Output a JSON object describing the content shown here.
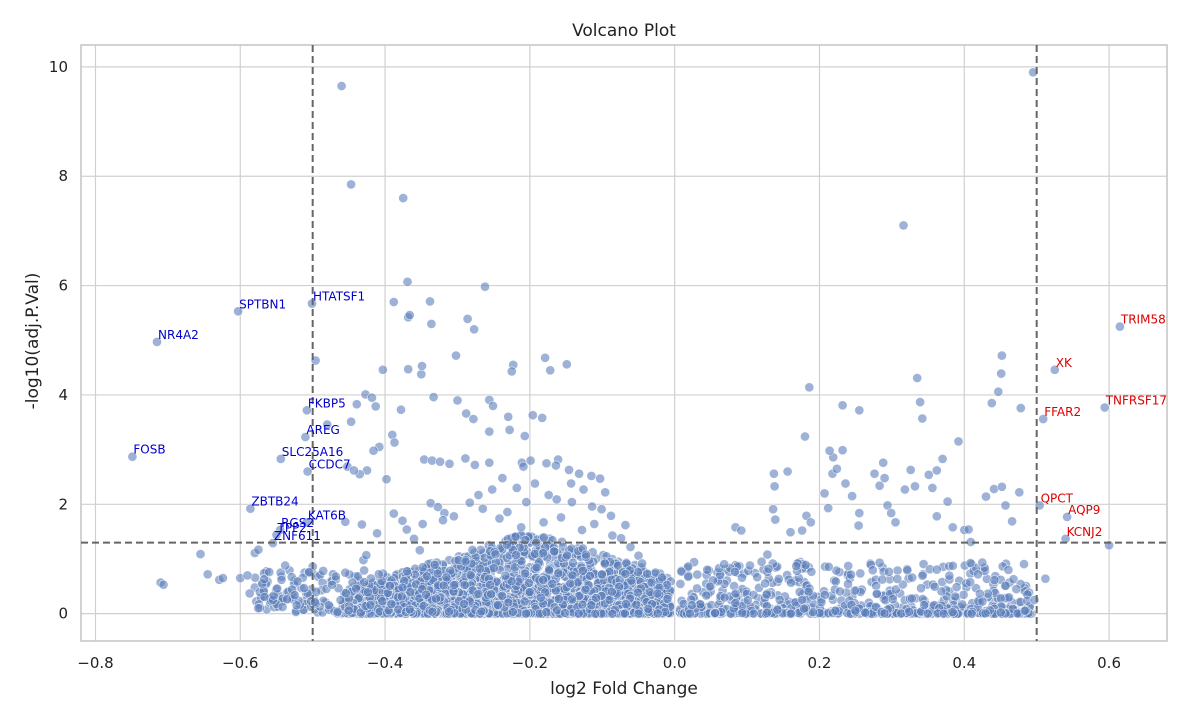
{
  "chart_data": {
    "type": "scatter",
    "title": "Volcano Plot",
    "xlabel": "log2 Fold Change",
    "ylabel": "-log10(adj.P.Val)",
    "xlim": [
      -0.82,
      0.68
    ],
    "ylim": [
      -0.5,
      10.4
    ],
    "xticks": [
      -0.8,
      -0.6,
      -0.4,
      -0.2,
      0.0,
      0.2,
      0.4,
      0.6
    ],
    "xtick_labels": [
      "−0.8",
      "−0.6",
      "−0.4",
      "−0.2",
      "0.0",
      "0.2",
      "0.4",
      "0.6"
    ],
    "yticks": [
      0,
      2,
      4,
      6,
      8,
      10
    ],
    "ytick_labels": [
      "0",
      "2",
      "4",
      "6",
      "8",
      "10"
    ],
    "grid": true,
    "threshold_lines": {
      "log2fc": [
        -0.5,
        0.5
      ],
      "neg_log10_p": 1.3
    },
    "colors": {
      "points": "#5b7fba",
      "down_labels": "#0000cc",
      "up_labels": "#dd0000",
      "threshold": "#666666",
      "grid": "#d0d0d0",
      "frame": "#c4c4c4"
    },
    "labeled_genes": [
      {
        "gene": "NR4A2",
        "x": -0.715,
        "y": 4.97,
        "direction": "down"
      },
      {
        "gene": "SPTBN1",
        "x": -0.603,
        "y": 5.53,
        "direction": "down"
      },
      {
        "gene": "HTATSF1",
        "x": -0.501,
        "y": 5.67,
        "direction": "down"
      },
      {
        "gene": "FOSB",
        "x": -0.749,
        "y": 2.87,
        "direction": "down"
      },
      {
        "gene": "FKBP5",
        "x": -0.508,
        "y": 3.72,
        "direction": "down"
      },
      {
        "gene": "AREG",
        "x": -0.51,
        "y": 3.23,
        "direction": "down"
      },
      {
        "gene": "SLC25A16",
        "x": -0.544,
        "y": 2.83,
        "direction": "down"
      },
      {
        "gene": "CCDC7",
        "x": -0.507,
        "y": 2.6,
        "direction": "down"
      },
      {
        "gene": "ZBTB24",
        "x": -0.586,
        "y": 1.92,
        "direction": "down"
      },
      {
        "gene": "KAT6B",
        "x": -0.508,
        "y": 1.67,
        "direction": "down"
      },
      {
        "gene": "RGS2",
        "x": -0.545,
        "y": 1.53,
        "direction": "down"
      },
      {
        "gene": "TPP2",
        "x": -0.55,
        "y": 1.44,
        "direction": "down"
      },
      {
        "gene": "ZNF611",
        "x": -0.555,
        "y": 1.29,
        "direction": "down"
      },
      {
        "gene": "TRIM58",
        "x": 0.615,
        "y": 5.25,
        "direction": "up"
      },
      {
        "gene": "XK",
        "x": 0.525,
        "y": 4.46,
        "direction": "up"
      },
      {
        "gene": "TNFRSF17",
        "x": 0.594,
        "y": 3.77,
        "direction": "up"
      },
      {
        "gene": "FFAR2",
        "x": 0.509,
        "y": 3.56,
        "direction": "up"
      },
      {
        "gene": "QPCT",
        "x": 0.504,
        "y": 1.98,
        "direction": "up"
      },
      {
        "gene": "AQP9",
        "x": 0.542,
        "y": 1.77,
        "direction": "up"
      },
      {
        "gene": "KCNJ2",
        "x": 0.54,
        "y": 1.37,
        "direction": "up"
      }
    ],
    "points": [
      [
        -0.46,
        9.65
      ],
      [
        0.495,
        9.9
      ],
      [
        -0.447,
        7.85
      ],
      [
        -0.375,
        7.6
      ],
      [
        0.316,
        7.1
      ],
      [
        -0.369,
        6.07
      ],
      [
        -0.262,
        5.98
      ],
      [
        -0.388,
        5.7
      ],
      [
        -0.338,
        5.71
      ],
      [
        -0.368,
        5.42
      ],
      [
        -0.366,
        5.46
      ],
      [
        -0.286,
        5.39
      ],
      [
        -0.336,
        5.3
      ],
      [
        -0.277,
        5.2
      ],
      [
        -0.496,
        4.63
      ],
      [
        -0.302,
        4.72
      ],
      [
        -0.179,
        4.68
      ],
      [
        -0.223,
        4.55
      ],
      [
        -0.149,
        4.56
      ],
      [
        -0.368,
        4.47
      ],
      [
        -0.403,
        4.46
      ],
      [
        -0.172,
        4.45
      ],
      [
        -0.225,
        4.43
      ],
      [
        -0.35,
        4.38
      ],
      [
        -0.349,
        4.53
      ],
      [
        -0.427,
        4.01
      ],
      [
        -0.418,
        3.95
      ],
      [
        -0.439,
        3.83
      ],
      [
        -0.413,
        3.79
      ],
      [
        -0.378,
        3.73
      ],
      [
        -0.333,
        3.96
      ],
      [
        -0.3,
        3.9
      ],
      [
        -0.256,
        3.91
      ],
      [
        -0.251,
        3.8
      ],
      [
        -0.288,
        3.66
      ],
      [
        -0.278,
        3.56
      ],
      [
        -0.23,
        3.6
      ],
      [
        -0.196,
        3.63
      ],
      [
        -0.183,
        3.58
      ],
      [
        -0.447,
        3.51
      ],
      [
        -0.48,
        3.46
      ],
      [
        -0.256,
        3.33
      ],
      [
        -0.228,
        3.36
      ],
      [
        -0.207,
        3.25
      ],
      [
        -0.408,
        3.05
      ],
      [
        -0.416,
        2.98
      ],
      [
        -0.39,
        3.27
      ],
      [
        -0.387,
        3.13
      ],
      [
        -0.346,
        2.82
      ],
      [
        -0.335,
        2.8
      ],
      [
        -0.324,
        2.78
      ],
      [
        -0.311,
        2.74
      ],
      [
        -0.289,
        2.84
      ],
      [
        -0.276,
        2.72
      ],
      [
        -0.256,
        2.76
      ],
      [
        -0.211,
        2.76
      ],
      [
        -0.209,
        2.69
      ],
      [
        -0.199,
        2.8
      ],
      [
        -0.177,
        2.75
      ],
      [
        -0.161,
        2.82
      ],
      [
        -0.164,
        2.71
      ],
      [
        -0.146,
        2.63
      ],
      [
        -0.132,
        2.56
      ],
      [
        -0.115,
        2.52
      ],
      [
        -0.103,
        2.47
      ],
      [
        -0.425,
        2.62
      ],
      [
        -0.452,
        2.69
      ],
      [
        -0.435,
        2.55
      ],
      [
        -0.398,
        2.46
      ],
      [
        -0.443,
        2.62
      ],
      [
        -0.5,
        0.86
      ],
      [
        -0.495,
        0.4
      ],
      [
        -0.497,
        0.21
      ],
      [
        -0.468,
        0.68
      ],
      [
        -0.455,
        0.75
      ],
      [
        -0.445,
        0.57
      ],
      [
        -0.44,
        0.46
      ],
      [
        -0.43,
        0.98
      ],
      [
        -0.426,
        1.07
      ],
      [
        -0.455,
        1.68
      ],
      [
        -0.432,
        1.63
      ],
      [
        -0.411,
        1.47
      ],
      [
        -0.388,
        1.83
      ],
      [
        -0.376,
        1.7
      ],
      [
        -0.37,
        1.54
      ],
      [
        -0.36,
        1.37
      ],
      [
        -0.352,
        1.16
      ],
      [
        -0.348,
        1.64
      ],
      [
        -0.337,
        2.02
      ],
      [
        -0.327,
        1.95
      ],
      [
        -0.318,
        1.84
      ],
      [
        -0.32,
        1.71
      ],
      [
        -0.305,
        1.78
      ],
      [
        -0.283,
        2.03
      ],
      [
        -0.271,
        2.17
      ],
      [
        -0.252,
        2.27
      ],
      [
        -0.238,
        2.48
      ],
      [
        -0.218,
        2.3
      ],
      [
        -0.205,
        2.04
      ],
      [
        -0.193,
        2.38
      ],
      [
        -0.174,
        2.17
      ],
      [
        -0.163,
        2.09
      ],
      [
        -0.142,
        2.04
      ],
      [
        -0.126,
        2.27
      ],
      [
        -0.114,
        1.96
      ],
      [
        -0.101,
        1.91
      ],
      [
        -0.088,
        1.79
      ],
      [
        -0.068,
        1.62
      ],
      [
        -0.096,
        2.22
      ],
      [
        -0.143,
        2.38
      ],
      [
        -0.265,
        1.92
      ],
      [
        -0.242,
        1.74
      ],
      [
        -0.231,
        1.86
      ],
      [
        -0.212,
        1.58
      ],
      [
        -0.181,
        1.67
      ],
      [
        -0.157,
        1.76
      ],
      [
        -0.128,
        1.53
      ],
      [
        -0.111,
        1.64
      ],
      [
        -0.086,
        1.43
      ],
      [
        -0.074,
        1.38
      ],
      [
        -0.061,
        1.22
      ],
      [
        -0.05,
        1.06
      ],
      [
        -0.045,
        0.92
      ],
      [
        -0.038,
        0.73
      ],
      [
        -0.032,
        0.57
      ],
      [
        -0.71,
        0.57
      ],
      [
        -0.706,
        0.53
      ],
      [
        -0.655,
        1.09
      ],
      [
        -0.645,
        0.72
      ],
      [
        -0.629,
        0.62
      ],
      [
        -0.624,
        0.65
      ],
      [
        -0.6,
        0.65
      ],
      [
        -0.59,
        0.7
      ],
      [
        -0.587,
        0.37
      ],
      [
        -0.58,
        1.11
      ],
      [
        -0.575,
        1.17
      ],
      [
        -0.567,
        0.63
      ],
      [
        -0.56,
        0.76
      ],
      [
        -0.554,
        0.33
      ],
      [
        -0.549,
        0.46
      ],
      [
        -0.543,
        0.62
      ],
      [
        -0.538,
        0.88
      ],
      [
        -0.529,
        0.67
      ],
      [
        -0.521,
        0.59
      ],
      [
        -0.512,
        0.47
      ],
      [
        -0.505,
        0.76
      ],
      [
        -0.525,
        0.34
      ],
      [
        0.084,
        1.58
      ],
      [
        0.092,
        1.52
      ],
      [
        0.104,
        0.88
      ],
      [
        0.12,
        0.95
      ],
      [
        0.128,
        1.08
      ],
      [
        0.136,
        1.91
      ],
      [
        0.139,
        1.72
      ],
      [
        0.138,
        2.33
      ],
      [
        0.137,
        2.56
      ],
      [
        0.156,
        2.6
      ],
      [
        0.16,
        1.49
      ],
      [
        0.168,
        0.87
      ],
      [
        0.176,
        1.52
      ],
      [
        0.182,
        1.79
      ],
      [
        0.188,
        1.67
      ],
      [
        0.18,
        3.24
      ],
      [
        0.186,
        4.14
      ],
      [
        0.207,
        2.2
      ],
      [
        0.212,
        1.93
      ],
      [
        0.218,
        2.56
      ],
      [
        0.219,
        2.86
      ],
      [
        0.214,
        2.98
      ],
      [
        0.232,
        2.99
      ],
      [
        0.224,
        2.65
      ],
      [
        0.236,
        2.38
      ],
      [
        0.245,
        2.15
      ],
      [
        0.255,
        1.84
      ],
      [
        0.254,
        1.61
      ],
      [
        0.232,
        3.81
      ],
      [
        0.255,
        3.72
      ],
      [
        0.276,
        2.56
      ],
      [
        0.283,
        2.34
      ],
      [
        0.288,
        2.76
      ],
      [
        0.29,
        2.48
      ],
      [
        0.294,
        1.98
      ],
      [
        0.299,
        1.84
      ],
      [
        0.305,
        1.67
      ],
      [
        0.318,
        2.27
      ],
      [
        0.326,
        2.63
      ],
      [
        0.332,
        2.33
      ],
      [
        0.339,
        3.87
      ],
      [
        0.335,
        4.31
      ],
      [
        0.342,
        3.57
      ],
      [
        0.351,
        2.54
      ],
      [
        0.356,
        2.3
      ],
      [
        0.362,
        2.62
      ],
      [
        0.362,
        1.78
      ],
      [
        0.37,
        2.83
      ],
      [
        0.377,
        2.05
      ],
      [
        0.384,
        1.58
      ],
      [
        0.392,
        3.15
      ],
      [
        0.4,
        1.53
      ],
      [
        0.406,
        1.54
      ],
      [
        0.409,
        1.31
      ],
      [
        0.419,
        0.72
      ],
      [
        0.425,
        0.22
      ],
      [
        0.43,
        2.14
      ],
      [
        0.438,
        3.85
      ],
      [
        0.441,
        2.28
      ],
      [
        0.447,
        4.06
      ],
      [
        0.451,
        4.39
      ],
      [
        0.452,
        4.72
      ],
      [
        0.452,
        2.32
      ],
      [
        0.457,
        1.98
      ],
      [
        0.461,
        0.8
      ],
      [
        0.466,
        1.69
      ],
      [
        0.476,
        2.22
      ],
      [
        0.478,
        3.76
      ],
      [
        0.497,
        0.25
      ],
      [
        0.512,
        0.64
      ],
      [
        0.6,
        1.25
      ]
    ]
  }
}
